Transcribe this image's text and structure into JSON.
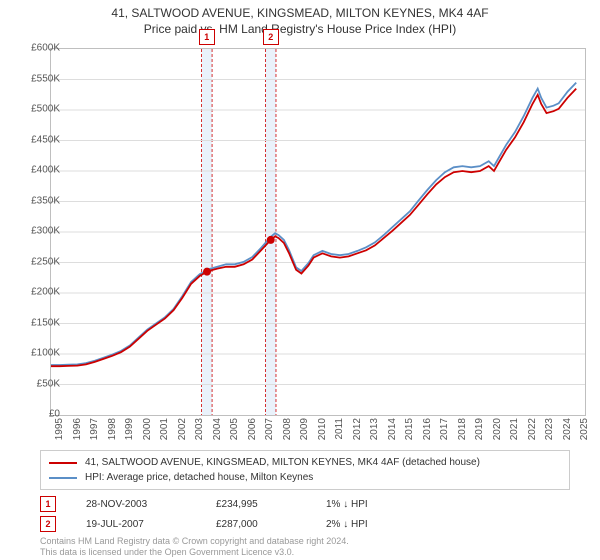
{
  "title_line1": "41, SALTWOOD AVENUE, KINGSMEAD, MILTON KEYNES, MK4 4AF",
  "title_line2": "Price paid vs. HM Land Registry's House Price Index (HPI)",
  "chart": {
    "type": "line",
    "background_color": "#ffffff",
    "grid_color": "#dddddd",
    "border_color": "#bfbfbf",
    "x_years": [
      1995,
      1996,
      1997,
      1998,
      1999,
      2000,
      2001,
      2002,
      2003,
      2004,
      2005,
      2006,
      2007,
      2008,
      2009,
      2010,
      2011,
      2012,
      2013,
      2014,
      2015,
      2016,
      2017,
      2018,
      2019,
      2020,
      2021,
      2022,
      2023,
      2024,
      2025
    ],
    "x_range": [
      1995,
      2025.5
    ],
    "y_ticks": [
      0,
      50000,
      100000,
      150000,
      200000,
      250000,
      300000,
      350000,
      400000,
      450000,
      500000,
      550000,
      600000
    ],
    "y_tick_labels": [
      "£0",
      "£50K",
      "£100K",
      "£150K",
      "£200K",
      "£250K",
      "£300K",
      "£350K",
      "£400K",
      "£450K",
      "£500K",
      "£550K",
      "£600K"
    ],
    "y_range": [
      0,
      600000
    ],
    "series": [
      {
        "name": "41, SALTWOOD AVENUE, KINGSMEAD, MILTON KEYNES, MK4 4AF (detached house)",
        "color": "#cc0000",
        "width": 1.8,
        "data": [
          [
            1995.0,
            80000
          ],
          [
            1995.5,
            80000
          ],
          [
            1996.0,
            80500
          ],
          [
            1996.5,
            81000
          ],
          [
            1997.0,
            83000
          ],
          [
            1997.5,
            87000
          ],
          [
            1998.0,
            92000
          ],
          [
            1998.5,
            97000
          ],
          [
            1999.0,
            103000
          ],
          [
            1999.5,
            112000
          ],
          [
            2000.0,
            125000
          ],
          [
            2000.5,
            138000
          ],
          [
            2001.0,
            148000
          ],
          [
            2001.5,
            158000
          ],
          [
            2002.0,
            172000
          ],
          [
            2002.5,
            192000
          ],
          [
            2003.0,
            215000
          ],
          [
            2003.5,
            228000
          ],
          [
            2003.91,
            234995
          ],
          [
            2004.0,
            236000
          ],
          [
            2004.5,
            240000
          ],
          [
            2005.0,
            243000
          ],
          [
            2005.5,
            243000
          ],
          [
            2006.0,
            247000
          ],
          [
            2006.5,
            255000
          ],
          [
            2007.0,
            270000
          ],
          [
            2007.55,
            287000
          ],
          [
            2007.8,
            293000
          ],
          [
            2008.0,
            290000
          ],
          [
            2008.3,
            282000
          ],
          [
            2008.6,
            265000
          ],
          [
            2009.0,
            238000
          ],
          [
            2009.3,
            232000
          ],
          [
            2009.7,
            245000
          ],
          [
            2010.0,
            258000
          ],
          [
            2010.5,
            265000
          ],
          [
            2011.0,
            260000
          ],
          [
            2011.5,
            258000
          ],
          [
            2012.0,
            260000
          ],
          [
            2012.5,
            265000
          ],
          [
            2013.0,
            270000
          ],
          [
            2013.5,
            278000
          ],
          [
            2014.0,
            290000
          ],
          [
            2014.5,
            302000
          ],
          [
            2015.0,
            315000
          ],
          [
            2015.5,
            328000
          ],
          [
            2016.0,
            345000
          ],
          [
            2016.5,
            362000
          ],
          [
            2017.0,
            378000
          ],
          [
            2017.5,
            390000
          ],
          [
            2018.0,
            398000
          ],
          [
            2018.5,
            400000
          ],
          [
            2019.0,
            398000
          ],
          [
            2019.5,
            400000
          ],
          [
            2020.0,
            408000
          ],
          [
            2020.3,
            400000
          ],
          [
            2020.6,
            415000
          ],
          [
            2021.0,
            435000
          ],
          [
            2021.5,
            455000
          ],
          [
            2022.0,
            480000
          ],
          [
            2022.5,
            510000
          ],
          [
            2022.8,
            525000
          ],
          [
            2023.0,
            510000
          ],
          [
            2023.3,
            495000
          ],
          [
            2023.7,
            498000
          ],
          [
            2024.0,
            502000
          ],
          [
            2024.5,
            520000
          ],
          [
            2025.0,
            535000
          ]
        ]
      },
      {
        "name": "HPI: Average price, detached house, Milton Keynes",
        "color": "#5b8fc7",
        "width": 1.5,
        "data": [
          [
            1995.0,
            82000
          ],
          [
            1995.5,
            82000
          ],
          [
            1996.0,
            82500
          ],
          [
            1996.5,
            83000
          ],
          [
            1997.0,
            85000
          ],
          [
            1997.5,
            89000
          ],
          [
            1998.0,
            94000
          ],
          [
            1998.5,
            99000
          ],
          [
            1999.0,
            105000
          ],
          [
            1999.5,
            114000
          ],
          [
            2000.0,
            127000
          ],
          [
            2000.5,
            140000
          ],
          [
            2001.0,
            150000
          ],
          [
            2001.5,
            160000
          ],
          [
            2002.0,
            174000
          ],
          [
            2002.5,
            195000
          ],
          [
            2003.0,
            218000
          ],
          [
            2003.5,
            231000
          ],
          [
            2003.91,
            237000
          ],
          [
            2004.0,
            239000
          ],
          [
            2004.5,
            243000
          ],
          [
            2005.0,
            247000
          ],
          [
            2005.5,
            247000
          ],
          [
            2006.0,
            251000
          ],
          [
            2006.5,
            259000
          ],
          [
            2007.0,
            274000
          ],
          [
            2007.55,
            292000
          ],
          [
            2007.8,
            298000
          ],
          [
            2008.0,
            295000
          ],
          [
            2008.3,
            287000
          ],
          [
            2008.6,
            270000
          ],
          [
            2009.0,
            242000
          ],
          [
            2009.3,
            236000
          ],
          [
            2009.7,
            249000
          ],
          [
            2010.0,
            262000
          ],
          [
            2010.5,
            269000
          ],
          [
            2011.0,
            264000
          ],
          [
            2011.5,
            262000
          ],
          [
            2012.0,
            264000
          ],
          [
            2012.5,
            269000
          ],
          [
            2013.0,
            275000
          ],
          [
            2013.5,
            283000
          ],
          [
            2014.0,
            295000
          ],
          [
            2014.5,
            308000
          ],
          [
            2015.0,
            321000
          ],
          [
            2015.5,
            334000
          ],
          [
            2016.0,
            352000
          ],
          [
            2016.5,
            369000
          ],
          [
            2017.0,
            385000
          ],
          [
            2017.5,
            398000
          ],
          [
            2018.0,
            406000
          ],
          [
            2018.5,
            408000
          ],
          [
            2019.0,
            406000
          ],
          [
            2019.5,
            408000
          ],
          [
            2020.0,
            416000
          ],
          [
            2020.3,
            408000
          ],
          [
            2020.6,
            423000
          ],
          [
            2021.0,
            443000
          ],
          [
            2021.5,
            464000
          ],
          [
            2022.0,
            490000
          ],
          [
            2022.5,
            520000
          ],
          [
            2022.8,
            535000
          ],
          [
            2023.0,
            520000
          ],
          [
            2023.3,
            504000
          ],
          [
            2023.7,
            507000
          ],
          [
            2024.0,
            511000
          ],
          [
            2024.5,
            530000
          ],
          [
            2025.0,
            545000
          ]
        ]
      }
    ],
    "bands": [
      {
        "x_start": 2003.6,
        "x_end": 2004.2,
        "color": "#eaf2fb",
        "border": "#cc0000",
        "label": "1"
      },
      {
        "x_start": 2007.25,
        "x_end": 2007.85,
        "color": "#eaf2fb",
        "border": "#cc0000",
        "label": "2"
      }
    ],
    "markers": [
      {
        "x": 2003.91,
        "y": 234995,
        "color": "#cc0000",
        "r": 4
      },
      {
        "x": 2007.55,
        "y": 287000,
        "color": "#cc0000",
        "r": 4
      }
    ]
  },
  "legend": {
    "items": [
      {
        "color": "#cc0000",
        "label": "41, SALTWOOD AVENUE, KINGSMEAD, MILTON KEYNES, MK4 4AF (detached house)"
      },
      {
        "color": "#5b8fc7",
        "label": "HPI: Average price, detached house, Milton Keynes"
      }
    ]
  },
  "sales": [
    {
      "badge": "1",
      "date": "28-NOV-2003",
      "price": "£234,995",
      "diff": "1% ↓ HPI"
    },
    {
      "badge": "2",
      "date": "19-JUL-2007",
      "price": "£287,000",
      "diff": "2% ↓ HPI"
    }
  ],
  "footer_line1": "Contains HM Land Registry data © Crown copyright and database right 2024.",
  "footer_line2": "This data is licensed under the Open Government Licence v3.0."
}
